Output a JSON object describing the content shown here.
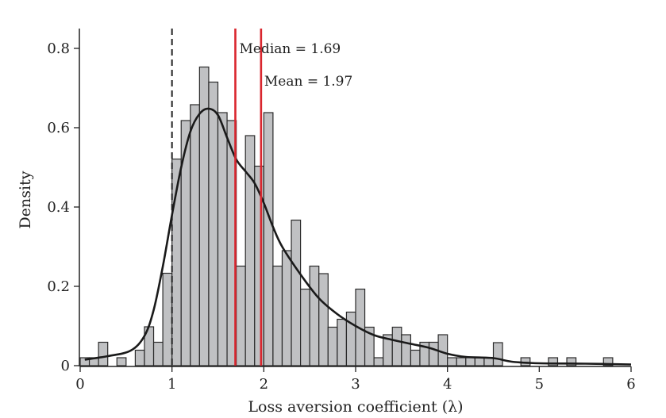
{
  "chart_data": {
    "type": "bar",
    "title": "",
    "xlabel": "Loss aversion coefficient (λ)",
    "ylabel": "Density",
    "xlim": [
      0,
      6
    ],
    "ylim": [
      0,
      0.85
    ],
    "xticks": [
      "0",
      "1",
      "2",
      "3",
      "4",
      "5",
      "6"
    ],
    "yticks": [
      "0",
      "0.2",
      "0.4",
      "0.6",
      "0.8"
    ],
    "bin_width": 0.1,
    "bins": [
      [
        0.0,
        0.02
      ],
      [
        0.1,
        0.02
      ],
      [
        0.2,
        0.059
      ],
      [
        0.4,
        0.02
      ],
      [
        0.6,
        0.039
      ],
      [
        0.7,
        0.098
      ],
      [
        0.8,
        0.059
      ],
      [
        0.9,
        0.233
      ],
      [
        1.0,
        0.521
      ],
      [
        1.1,
        0.618
      ],
      [
        1.2,
        0.658
      ],
      [
        1.3,
        0.753
      ],
      [
        1.4,
        0.715
      ],
      [
        1.5,
        0.638
      ],
      [
        1.6,
        0.618
      ],
      [
        1.7,
        0.251
      ],
      [
        1.8,
        0.58
      ],
      [
        1.9,
        0.503
      ],
      [
        2.0,
        0.638
      ],
      [
        2.1,
        0.251
      ],
      [
        2.2,
        0.29
      ],
      [
        2.3,
        0.367
      ],
      [
        2.4,
        0.193
      ],
      [
        2.5,
        0.251
      ],
      [
        2.6,
        0.232
      ],
      [
        2.7,
        0.097
      ],
      [
        2.8,
        0.117
      ],
      [
        2.9,
        0.135
      ],
      [
        3.0,
        0.193
      ],
      [
        3.1,
        0.097
      ],
      [
        3.2,
        0.02
      ],
      [
        3.3,
        0.078
      ],
      [
        3.4,
        0.097
      ],
      [
        3.5,
        0.078
      ],
      [
        3.6,
        0.039
      ],
      [
        3.7,
        0.059
      ],
      [
        3.8,
        0.059
      ],
      [
        3.9,
        0.078
      ],
      [
        4.0,
        0.02
      ],
      [
        4.1,
        0.02
      ],
      [
        4.2,
        0.02
      ],
      [
        4.3,
        0.02
      ],
      [
        4.4,
        0.02
      ],
      [
        4.5,
        0.058
      ],
      [
        4.8,
        0.02
      ],
      [
        5.1,
        0.02
      ],
      [
        5.3,
        0.02
      ],
      [
        5.7,
        0.02
      ]
    ],
    "kde": [
      [
        0.05,
        0.015
      ],
      [
        0.3,
        0.024
      ],
      [
        0.55,
        0.038
      ],
      [
        0.7,
        0.075
      ],
      [
        0.8,
        0.14
      ],
      [
        0.9,
        0.25
      ],
      [
        1.0,
        0.38
      ],
      [
        1.1,
        0.5
      ],
      [
        1.2,
        0.59
      ],
      [
        1.3,
        0.635
      ],
      [
        1.4,
        0.648
      ],
      [
        1.5,
        0.632
      ],
      [
        1.6,
        0.575
      ],
      [
        1.7,
        0.52
      ],
      [
        1.8,
        0.49
      ],
      [
        1.9,
        0.46
      ],
      [
        2.0,
        0.41
      ],
      [
        2.1,
        0.35
      ],
      [
        2.2,
        0.3
      ],
      [
        2.4,
        0.23
      ],
      [
        2.6,
        0.17
      ],
      [
        2.8,
        0.13
      ],
      [
        3.0,
        0.1
      ],
      [
        3.2,
        0.077
      ],
      [
        3.4,
        0.065
      ],
      [
        3.6,
        0.055
      ],
      [
        3.8,
        0.045
      ],
      [
        4.0,
        0.03
      ],
      [
        4.2,
        0.022
      ],
      [
        4.5,
        0.019
      ],
      [
        4.7,
        0.01
      ],
      [
        5.0,
        0.006
      ],
      [
        5.5,
        0.005
      ],
      [
        6.0,
        0.003
      ]
    ],
    "reference_line": {
      "x": 1
    },
    "median": {
      "x": 1.69,
      "label": "Median = 1.69"
    },
    "mean": {
      "x": 1.97,
      "label": "Mean = 1.97"
    },
    "colors": {
      "bar": "#c0c1c3",
      "bar_edge": "#2a2a2a",
      "kde": "#1a1a1a",
      "stat_line": "#d9262e"
    }
  }
}
